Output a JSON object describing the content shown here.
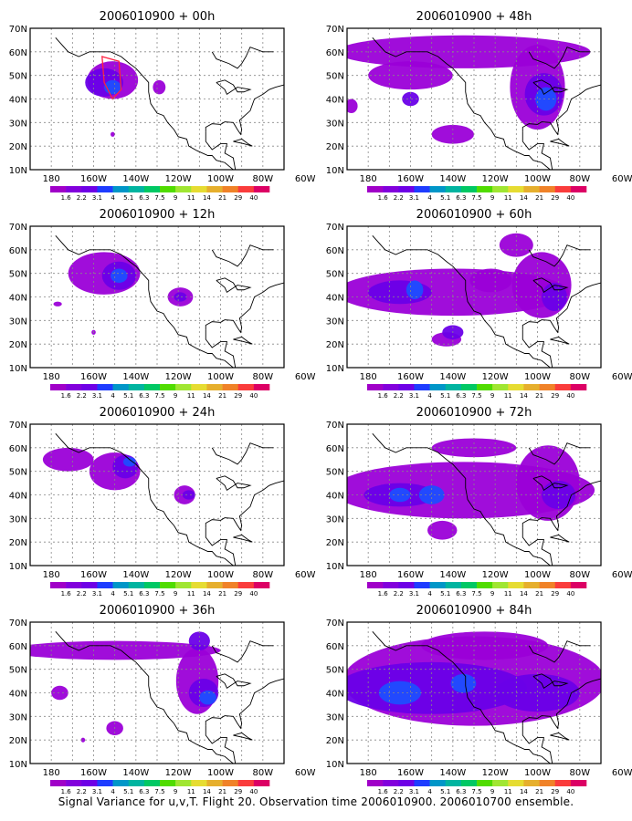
{
  "caption": "Signal Variance for u,v,T. Flight 20. Observation time 2006010900. 2006010700 ensemble.",
  "lat_labels": [
    "70N",
    "60N",
    "50N",
    "40N",
    "30N",
    "20N",
    "10N"
  ],
  "lon_labels": [
    "180",
    "160W",
    "140W",
    "120W",
    "100W",
    "80W",
    "60W"
  ],
  "colorbar": {
    "labels": [
      "1.6",
      "2.2",
      "3.1",
      "4",
      "5.1",
      "6.3",
      "7.5",
      "9",
      "11",
      "14",
      "21",
      "29",
      "40"
    ],
    "colors": [
      "#a000c8",
      "#8200dc",
      "#6e00e6",
      "#1e3cff",
      "#0096c8",
      "#00b4a0",
      "#00c864",
      "#50dc00",
      "#a0e632",
      "#e6dc32",
      "#e6af2d",
      "#f08228",
      "#fa3c3c",
      "#dc0064"
    ]
  },
  "panels": [
    {
      "title": "2006010900 + 00h",
      "lead": "00h"
    },
    {
      "title": "2006010900 + 48h",
      "lead": "48h"
    },
    {
      "title": "2006010900 + 12h",
      "lead": "12h"
    },
    {
      "title": "2006010900 + 60h",
      "lead": "60h"
    },
    {
      "title": "2006010900 + 24h",
      "lead": "24h"
    },
    {
      "title": "2006010900 + 72h",
      "lead": "72h"
    },
    {
      "title": "2006010900 + 36h",
      "lead": "36h"
    },
    {
      "title": "2006010900 + 84h",
      "lead": "84h"
    }
  ],
  "map_extent": {
    "lon": [
      -180,
      -60
    ],
    "lat": [
      10,
      70
    ]
  }
}
